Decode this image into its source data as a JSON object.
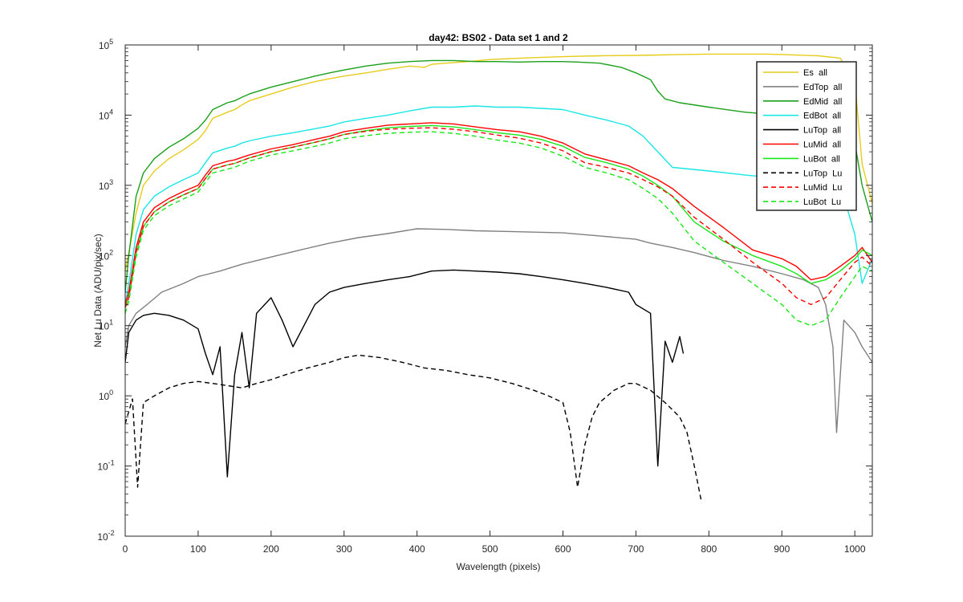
{
  "chart_data": {
    "type": "line",
    "title": "day42: BS02 - Data set 1 and 2",
    "xlabel": "Wavelength (pixels)",
    "ylabel": "Net Lu Data (ADU/pix/sec)",
    "xlim": [
      0,
      1024
    ],
    "ylim": [
      0.01,
      100000
    ],
    "yscale": "log",
    "grid": false,
    "legend_position": "top-right",
    "xticks": [
      0,
      100,
      200,
      300,
      400,
      500,
      600,
      700,
      800,
      900,
      1000
    ],
    "yticks": [
      {
        "value": 0.01,
        "base": "10",
        "exp": "-2"
      },
      {
        "value": 0.1,
        "base": "10",
        "exp": "-1"
      },
      {
        "value": 1,
        "base": "10",
        "exp": "0"
      },
      {
        "value": 10,
        "base": "10",
        "exp": "1"
      },
      {
        "value": 100,
        "base": "10",
        "exp": "2"
      },
      {
        "value": 1000,
        "base": "10",
        "exp": "3"
      },
      {
        "value": 10000,
        "base": "10",
        "exp": "4"
      },
      {
        "value": 100000,
        "base": "10",
        "exp": "5"
      }
    ],
    "series": [
      {
        "name": "Es  all",
        "color": "#e6cc1a",
        "dash": "solid",
        "x": [
          0,
          5,
          15,
          25,
          40,
          60,
          80,
          100,
          110,
          120,
          140,
          150,
          160,
          170,
          200,
          230,
          260,
          280,
          300,
          330,
          360,
          390,
          410,
          420,
          440,
          470,
          500,
          530,
          560,
          600,
          650,
          700,
          730,
          760,
          800,
          850,
          880,
          900,
          950,
          980,
          1000,
          1010,
          1024
        ],
        "y": [
          60,
          110,
          400,
          1000,
          1600,
          2400,
          3200,
          4500,
          6000,
          9000,
          11000,
          12000,
          14000,
          16000,
          20000,
          25000,
          30000,
          33000,
          36000,
          40000,
          45000,
          50000,
          48000,
          53000,
          55000,
          58000,
          62000,
          64000,
          66000,
          68000,
          70000,
          71000,
          72000,
          73000,
          74000,
          74000,
          74000,
          73000,
          70000,
          65000,
          30000,
          2000,
          550
        ]
      },
      {
        "name": "EdTop  all",
        "color": "#808080",
        "dash": "solid",
        "x": [
          0,
          5,
          15,
          30,
          50,
          80,
          100,
          130,
          160,
          200,
          240,
          280,
          320,
          360,
          400,
          440,
          480,
          520,
          560,
          600,
          650,
          700,
          720,
          750,
          780,
          820,
          860,
          900,
          930,
          950,
          960,
          970,
          975,
          985,
          1000,
          1010,
          1024
        ],
        "y": [
          5,
          10,
          15,
          20,
          30,
          40,
          50,
          60,
          75,
          95,
          120,
          150,
          180,
          205,
          240,
          235,
          225,
          220,
          215,
          210,
          190,
          170,
          150,
          130,
          110,
          85,
          70,
          55,
          45,
          35,
          20,
          5,
          0.3,
          12,
          8,
          5,
          3
        ]
      },
      {
        "name": "EdMid  all",
        "color": "#1aa01a",
        "dash": "solid",
        "x": [
          0,
          5,
          15,
          25,
          40,
          60,
          80,
          100,
          110,
          120,
          140,
          150,
          160,
          170,
          200,
          230,
          260,
          280,
          300,
          330,
          360,
          390,
          420,
          450,
          480,
          510,
          540,
          570,
          600,
          620,
          650,
          680,
          700,
          720,
          730,
          740,
          760,
          800,
          850,
          900,
          950,
          980,
          1000,
          1010,
          1024
        ],
        "y": [
          30,
          100,
          700,
          1500,
          2400,
          3500,
          4600,
          6500,
          8500,
          12000,
          15000,
          16000,
          18000,
          20000,
          25000,
          30000,
          36000,
          40000,
          44000,
          50000,
          55000,
          58000,
          60000,
          60000,
          58000,
          58000,
          57000,
          58000,
          58000,
          57000,
          55000,
          48000,
          40000,
          32000,
          22000,
          17000,
          15000,
          13000,
          11000,
          10000,
          9000,
          7000,
          4000,
          1000,
          300
        ]
      },
      {
        "name": "EdBot  all",
        "color": "#1ae6e6",
        "dash": "solid",
        "x": [
          0,
          5,
          15,
          25,
          40,
          60,
          80,
          100,
          110,
          120,
          140,
          150,
          160,
          170,
          200,
          230,
          260,
          280,
          300,
          330,
          360,
          390,
          420,
          450,
          480,
          510,
          540,
          570,
          600,
          630,
          660,
          690,
          710,
          730,
          750,
          800,
          850,
          900,
          930,
          960,
          980,
          990,
          1000,
          1010,
          1024
        ],
        "y": [
          20,
          40,
          200,
          450,
          700,
          950,
          1200,
          1500,
          2100,
          2900,
          3400,
          3600,
          4000,
          4300,
          5000,
          5600,
          6400,
          7000,
          8000,
          9000,
          10000,
          11500,
          13000,
          13000,
          13500,
          13000,
          13000,
          12500,
          12000,
          10000,
          8500,
          7000,
          5000,
          3000,
          1800,
          1600,
          1400,
          1250,
          1100,
          900,
          700,
          450,
          200,
          40,
          90
        ]
      },
      {
        "name": "LuTop  all",
        "color": "#000000",
        "dash": "solid",
        "x": [
          0,
          5,
          15,
          25,
          40,
          60,
          80,
          100,
          110,
          120,
          130,
          140,
          150,
          160,
          170,
          180,
          200,
          215,
          230,
          260,
          280,
          300,
          330,
          360,
          390,
          420,
          450,
          480,
          510,
          540,
          570,
          600,
          630,
          660,
          690,
          700,
          720,
          730,
          740,
          750,
          760,
          765
        ],
        "y": [
          3,
          8,
          12,
          14,
          15,
          14,
          12,
          9,
          4,
          2,
          5,
          0.07,
          2,
          8,
          1.3,
          15,
          25,
          12,
          5,
          20,
          30,
          35,
          40,
          45,
          50,
          60,
          62,
          60,
          58,
          55,
          50,
          45,
          40,
          35,
          30,
          20,
          15,
          0.1,
          6,
          3,
          7,
          4
        ]
      },
      {
        "name": "LuMid  all",
        "color": "#ff0000",
        "dash": "solid",
        "x": [
          0,
          5,
          15,
          25,
          40,
          60,
          80,
          100,
          110,
          120,
          140,
          150,
          160,
          170,
          200,
          230,
          260,
          280,
          300,
          330,
          360,
          390,
          420,
          450,
          480,
          510,
          540,
          570,
          600,
          630,
          660,
          690,
          710,
          730,
          750,
          780,
          820,
          860,
          900,
          920,
          940,
          960,
          980,
          1000,
          1010,
          1024
        ],
        "y": [
          20,
          30,
          130,
          300,
          480,
          650,
          820,
          1000,
          1400,
          1900,
          2200,
          2300,
          2500,
          2700,
          3300,
          3800,
          4500,
          5000,
          5800,
          6500,
          7200,
          7500,
          7800,
          7500,
          6800,
          6200,
          5800,
          5000,
          4000,
          2800,
          2300,
          1900,
          1500,
          1200,
          900,
          500,
          250,
          120,
          90,
          70,
          45,
          50,
          70,
          100,
          130,
          80
        ]
      },
      {
        "name": "LuBot  all",
        "color": "#1ae61a",
        "dash": "solid",
        "x": [
          0,
          5,
          15,
          25,
          40,
          60,
          80,
          100,
          110,
          120,
          140,
          150,
          160,
          170,
          200,
          230,
          260,
          280,
          300,
          330,
          360,
          390,
          420,
          450,
          480,
          510,
          540,
          570,
          600,
          630,
          660,
          690,
          710,
          730,
          750,
          780,
          820,
          860,
          900,
          920,
          940,
          960,
          980,
          1000,
          1010,
          1024
        ],
        "y": [
          18,
          25,
          110,
          260,
          420,
          580,
          730,
          900,
          1250,
          1700,
          1950,
          2050,
          2250,
          2450,
          3000,
          3500,
          4100,
          4600,
          5300,
          6000,
          6600,
          6900,
          7100,
          6800,
          6200,
          5600,
          5200,
          4500,
          3600,
          2500,
          2100,
          1700,
          1350,
          1000,
          700,
          300,
          160,
          100,
          70,
          55,
          40,
          45,
          60,
          90,
          120,
          100
        ]
      },
      {
        "name": "LuTop  Lu",
        "color": "#000000",
        "dash": "dashed",
        "x": [
          0,
          10,
          17,
          25,
          40,
          60,
          80,
          100,
          120,
          140,
          160,
          180,
          200,
          220,
          250,
          280,
          300,
          320,
          350,
          380,
          410,
          440,
          470,
          500,
          530,
          560,
          580,
          600,
          610,
          620,
          630,
          640,
          650,
          670,
          690,
          700,
          720,
          740,
          760,
          770,
          780,
          790
        ],
        "y": [
          0.4,
          0.9,
          0.05,
          0.8,
          1.0,
          1.3,
          1.5,
          1.6,
          1.5,
          1.4,
          1.3,
          1.5,
          1.7,
          2.0,
          2.5,
          3.0,
          3.5,
          3.8,
          3.5,
          3.0,
          2.5,
          2.3,
          2.0,
          1.8,
          1.5,
          1.2,
          1.0,
          0.8,
          0.3,
          0.05,
          0.2,
          0.5,
          0.8,
          1.2,
          1.5,
          1.5,
          1.2,
          0.8,
          0.5,
          0.3,
          0.1,
          0.03
        ]
      },
      {
        "name": "LuMid  Lu",
        "color": "#ff0000",
        "dash": "dashed",
        "x": [
          0,
          5,
          15,
          25,
          40,
          60,
          80,
          100,
          110,
          120,
          140,
          150,
          160,
          170,
          200,
          230,
          260,
          280,
          300,
          330,
          360,
          390,
          420,
          450,
          480,
          510,
          540,
          570,
          600,
          630,
          660,
          690,
          710,
          730,
          750,
          780,
          820,
          860,
          900,
          920,
          940,
          960,
          980,
          1000,
          1010,
          1024
        ],
        "y": [
          18,
          25,
          110,
          260,
          420,
          580,
          730,
          900,
          1250,
          1700,
          1950,
          2050,
          2250,
          2450,
          3000,
          3500,
          4100,
          4600,
          5300,
          5900,
          6300,
          6500,
          6600,
          6300,
          5800,
          5200,
          4700,
          4000,
          3100,
          2100,
          1800,
          1500,
          1200,
          950,
          700,
          350,
          170,
          80,
          40,
          25,
          20,
          25,
          45,
          80,
          95,
          70
        ]
      },
      {
        "name": "LuBot  Lu",
        "color": "#1ae61a",
        "dash": "dashed",
        "x": [
          0,
          5,
          15,
          25,
          40,
          60,
          80,
          100,
          110,
          120,
          140,
          150,
          160,
          170,
          200,
          230,
          260,
          280,
          300,
          330,
          360,
          390,
          420,
          450,
          480,
          510,
          540,
          570,
          600,
          630,
          660,
          690,
          710,
          730,
          750,
          780,
          820,
          860,
          900,
          920,
          940,
          960,
          980,
          1000,
          1010,
          1024
        ],
        "y": [
          15,
          22,
          95,
          230,
          370,
          510,
          640,
          800,
          1100,
          1500,
          1700,
          1800,
          2000,
          2200,
          2700,
          3100,
          3600,
          4000,
          4600,
          5100,
          5500,
          5700,
          5800,
          5500,
          5000,
          4400,
          4000,
          3400,
          2600,
          1800,
          1500,
          1200,
          900,
          650,
          400,
          160,
          80,
          40,
          20,
          12,
          10,
          12,
          25,
          50,
          70,
          60
        ]
      }
    ]
  }
}
